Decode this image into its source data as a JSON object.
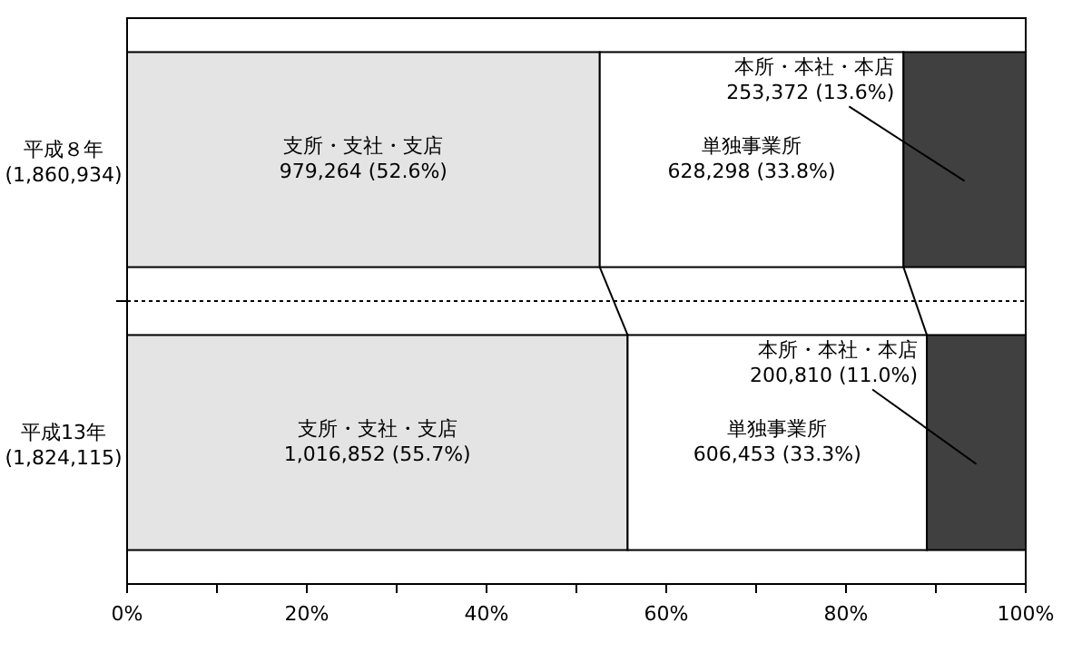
{
  "chart_data": {
    "type": "bar",
    "orientation": "horizontal",
    "stacked": true,
    "categories": [
      "平成８年\n(1,860,934)",
      "平成13年\n(1,824,115)"
    ],
    "series": [
      {
        "name": "支所・支社・支店",
        "color": "#e4e4e4",
        "values": [
          52.6,
          55.7
        ],
        "value_labels": [
          "979,264 (52.6%)",
          "1,016,852 (55.7%)"
        ]
      },
      {
        "name": "単独事業所",
        "color": "#ffffff",
        "values": [
          33.8,
          33.3
        ],
        "value_labels": [
          "628,298 (33.8%)",
          "606,453 (33.3%)"
        ]
      },
      {
        "name": "本所・本社・本店",
        "color": "#404040",
        "values": [
          13.6,
          11.0
        ],
        "value_labels": [
          "253,372 (13.6%)",
          "200,810 (11.0%)"
        ]
      }
    ],
    "xlim": [
      0,
      100
    ],
    "xticks": [
      {
        "value": 0,
        "label": "0%"
      },
      {
        "value": 20,
        "label": "20%"
      },
      {
        "value": 40,
        "label": "40%"
      },
      {
        "value": 60,
        "label": "60%"
      },
      {
        "value": 80,
        "label": "80%"
      },
      {
        "value": 100,
        "label": "100%"
      }
    ],
    "grid": false
  }
}
